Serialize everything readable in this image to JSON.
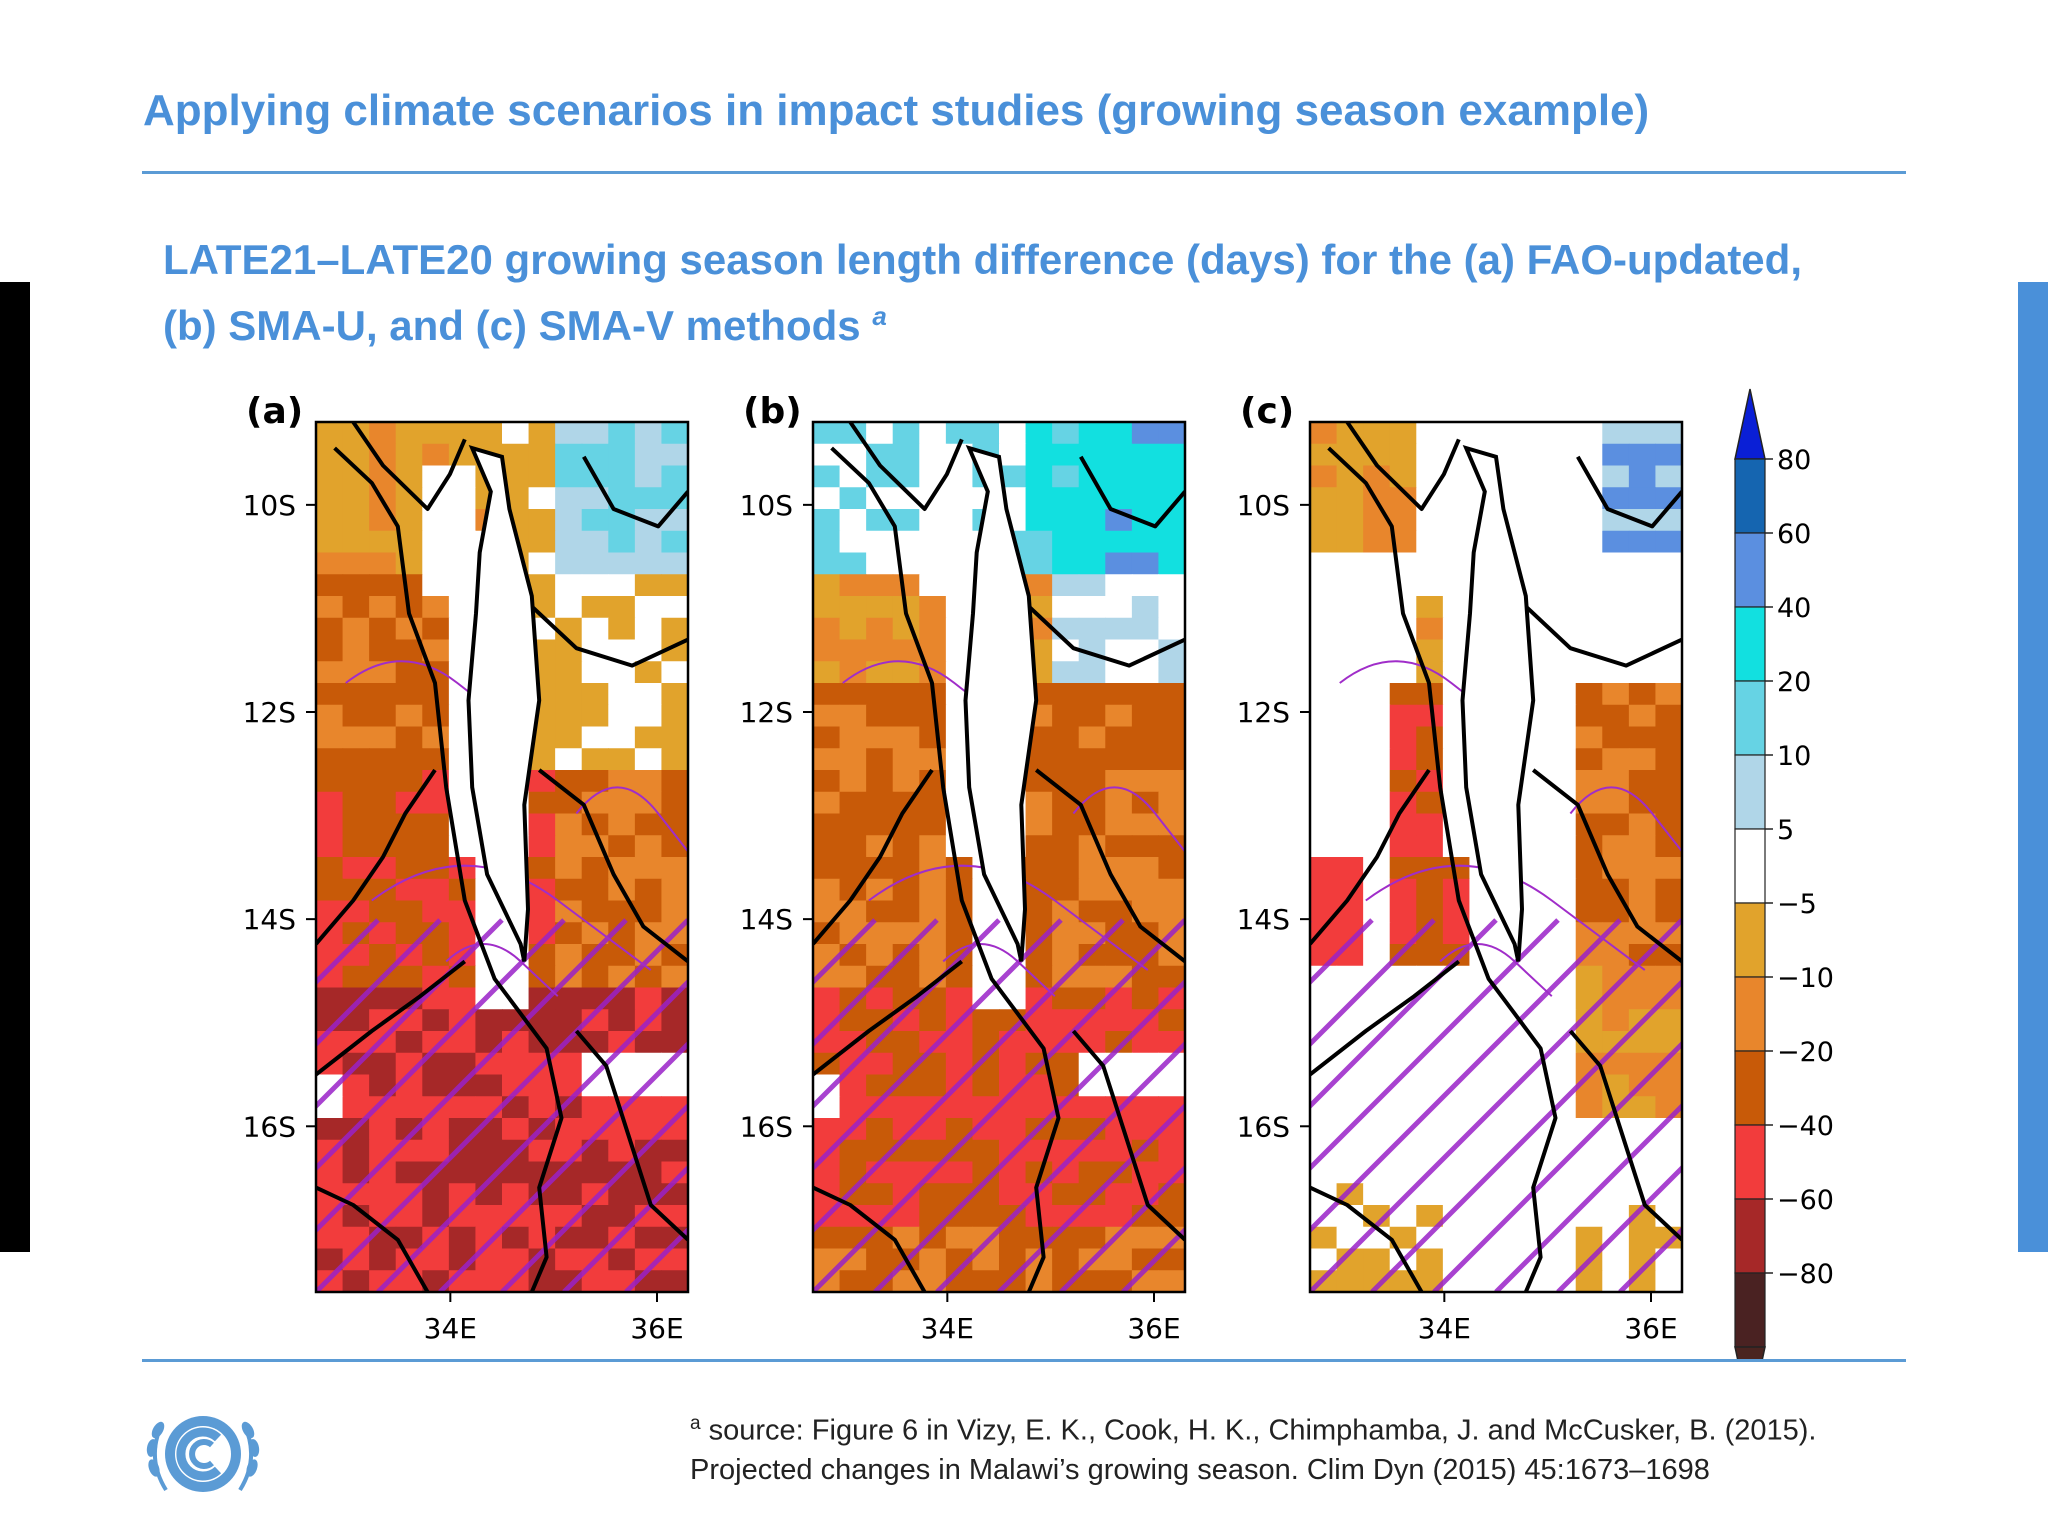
{
  "slide": {
    "title": "Applying climate scenarios in impact studies (growing season example)",
    "subtitle_main": "LATE21–LATE20 growing season length difference (days) for the (a) FAO-updated, (b) SMA-U, and (c) SMA-V methods",
    "subtitle_marker": "a",
    "footnote_marker": "a",
    "footnote_line1": " source: Figure 6 in Vizy, E. K., Cook, H. K., Chimphamba, J. and McCusker, B. (2015).",
    "footnote_line2": "Projected changes in Malawi’s growing season. Clim Dyn (2015) 45:1673–1698"
  },
  "colors": {
    "title": "#4a90d9",
    "rule": "#5b9bd5",
    "left_bar": "#000000",
    "right_bar": "#4a90d9"
  },
  "logo": {
    "icon": "unfccc-emblem-icon"
  },
  "chart_data": {
    "type": "heatmap",
    "panels": [
      {
        "label": "(a)",
        "method": "FAO-updated",
        "dominant": "negative"
      },
      {
        "label": "(b)",
        "method": "SMA-U",
        "dominant": "negative"
      },
      {
        "label": "(c)",
        "method": "SMA-V",
        "dominant": "mixed"
      }
    ],
    "y_ticks": [
      "10S",
      "12S",
      "14S",
      "16S"
    ],
    "y_tick_values": [
      -10,
      -12,
      -14,
      -16
    ],
    "x_ticks": [
      "34E",
      "36E"
    ],
    "x_tick_values": [
      34,
      36
    ],
    "xlim": [
      32.7,
      36.3
    ],
    "ylim": [
      -17.6,
      -9.2
    ],
    "hatching": "purple diagonal lines with purple contours",
    "colorbar": {
      "labels": [
        "80",
        "60",
        "40",
        "20",
        "10",
        "5",
        "−5",
        "−10",
        "−20",
        "−40",
        "−60",
        "−80"
      ],
      "colors": [
        "#1565b0",
        "#5b8fe0",
        "#12e0e0",
        "#66d3e4",
        "#b0d6e8",
        "#ffffff",
        "#e1a32c",
        "#e8862c",
        "#c85a08",
        "#f23c3c",
        "#a62828",
        "#4a2222"
      ],
      "end_colors": [
        "#0a1fd6",
        "#4a2420"
      ]
    }
  }
}
